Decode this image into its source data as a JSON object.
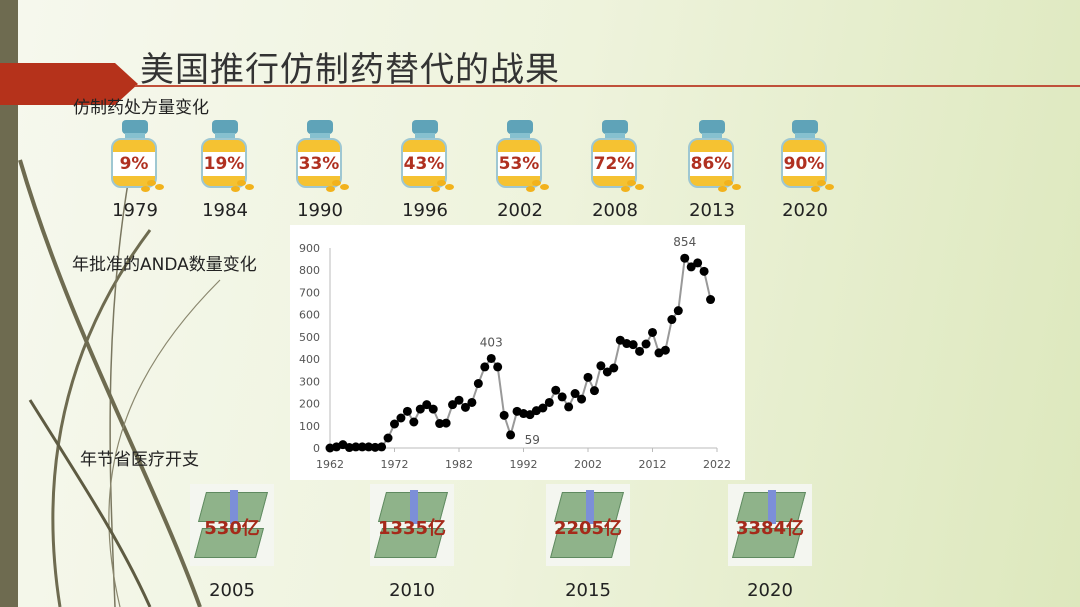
{
  "slide": {
    "title": "美国推行仿制药替代的战果",
    "accent_color": "#b5321b"
  },
  "prescriptions": {
    "label": "仿制药处方量变化",
    "items": [
      {
        "year": "1979",
        "share": "9%"
      },
      {
        "year": "1984",
        "share": "19%"
      },
      {
        "year": "1990",
        "share": "33%"
      },
      {
        "year": "1996",
        "share": "43%"
      },
      {
        "year": "2002",
        "share": "53%"
      },
      {
        "year": "2008",
        "share": "72%"
      },
      {
        "year": "2013",
        "share": "86%"
      },
      {
        "year": "2020",
        "share": "90%"
      }
    ],
    "icon": "pill-bottle-icon"
  },
  "anda": {
    "label": "年批准的ANDA数量变化"
  },
  "savings": {
    "label": "年节省医疗开支",
    "items": [
      {
        "year": "2005",
        "amount": "530亿"
      },
      {
        "year": "2010",
        "amount": "1335亿"
      },
      {
        "year": "2015",
        "amount": "2205亿"
      },
      {
        "year": "2020",
        "amount": "3384亿"
      }
    ],
    "icon": "money-stack-icon"
  },
  "chart_data": {
    "type": "line",
    "xlim": [
      1962,
      2022
    ],
    "ylim": [
      0,
      900
    ],
    "xticks": [
      "1962",
      "1972",
      "1982",
      "1992",
      "2002",
      "2012",
      "2022"
    ],
    "yticks": [
      "0",
      "100",
      "200",
      "300",
      "400",
      "500",
      "600",
      "700",
      "800",
      "900"
    ],
    "x": [
      1962,
      1963,
      1964,
      1965,
      1966,
      1967,
      1968,
      1969,
      1970,
      1971,
      1972,
      1973,
      1974,
      1975,
      1976,
      1977,
      1978,
      1979,
      1980,
      1981,
      1982,
      1983,
      1984,
      1985,
      1986,
      1987,
      1988,
      1989,
      1990,
      1991,
      1992,
      1993,
      1994,
      1995,
      1996,
      1997,
      1998,
      1999,
      2000,
      2001,
      2002,
      2003,
      2004,
      2005,
      2006,
      2007,
      2008,
      2009,
      2010,
      2011,
      2012,
      2013,
      2014,
      2015,
      2016,
      2017,
      2018,
      2019,
      2020,
      2021
    ],
    "y": [
      0,
      5,
      15,
      2,
      5,
      5,
      5,
      3,
      5,
      45,
      108,
      135,
      165,
      117,
      175,
      195,
      175,
      110,
      112,
      195,
      215,
      183,
      205,
      290,
      365,
      403,
      365,
      147,
      59,
      165,
      155,
      150,
      168,
      180,
      205,
      260,
      230,
      185,
      245,
      220,
      318,
      258,
      370,
      342,
      360,
      485,
      470,
      465,
      435,
      468,
      520,
      428,
      440,
      578,
      618,
      854,
      815,
      833,
      795,
      668
    ],
    "annotations": [
      {
        "x": 1987,
        "y": 403,
        "text": "403"
      },
      {
        "x": 1990,
        "y": 59,
        "text": "59"
      },
      {
        "x": 2017,
        "y": 854,
        "text": "854"
      }
    ],
    "line_color": "#999999",
    "marker_color": "#000000",
    "grid": false
  }
}
